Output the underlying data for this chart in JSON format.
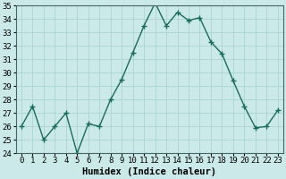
{
  "title": "",
  "xlabel": "Humidex (Indice chaleur)",
  "ylabel": "",
  "x_values": [
    0,
    1,
    2,
    3,
    4,
    5,
    6,
    7,
    8,
    9,
    10,
    11,
    12,
    13,
    14,
    15,
    16,
    17,
    18,
    19,
    20,
    21,
    22,
    23
  ],
  "y_values": [
    26,
    27.5,
    25,
    26,
    27,
    24,
    26.2,
    26,
    28,
    29.5,
    31.5,
    33.5,
    35.2,
    33.5,
    34.5,
    33.9,
    34.1,
    32.3,
    31.4,
    29.4,
    27.5,
    25.9,
    26,
    27.2
  ],
  "line_color": "#1a6b5a",
  "marker": "+",
  "marker_size": 4,
  "marker_lw": 1.0,
  "bg_color": "#cce9e9",
  "grid_color": "#aad4d4",
  "ylim": [
    24,
    35
  ],
  "yticks": [
    24,
    25,
    26,
    27,
    28,
    29,
    30,
    31,
    32,
    33,
    34,
    35
  ],
  "xticks": [
    0,
    1,
    2,
    3,
    4,
    5,
    6,
    7,
    8,
    9,
    10,
    11,
    12,
    13,
    14,
    15,
    16,
    17,
    18,
    19,
    20,
    21,
    22,
    23
  ],
  "tick_fontsize": 6.5,
  "label_fontsize": 7.5,
  "linewidth": 1.0
}
